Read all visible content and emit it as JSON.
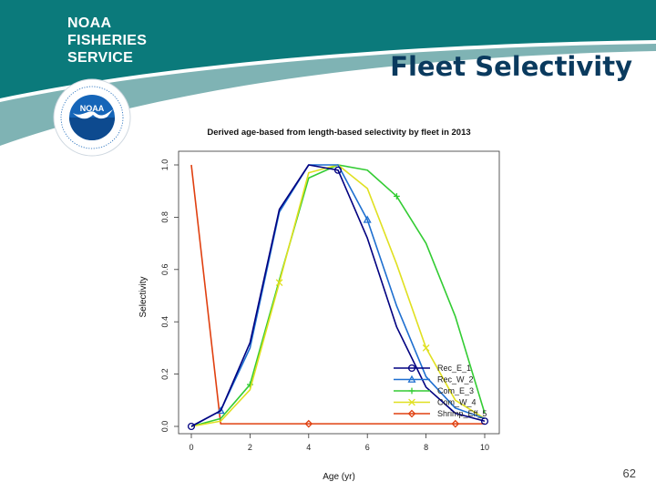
{
  "header": {
    "logo_lines": [
      "NOAA",
      "FISHERIES",
      "SERVICE"
    ],
    "title": "Fleet Selectivity",
    "colors": {
      "band": "#0b7a7b",
      "band_shadow": "#7fb3b4",
      "title": "#0a3a5e",
      "emblem_blue": "#1565b8"
    },
    "emblem_icon": "noaa-bird-emblem-icon"
  },
  "chart_data": {
    "type": "line",
    "title": "Derived age-based from length-based selectivity by fleet in 2013",
    "xlabel": "Age (yr)",
    "ylabel": "Selectivity",
    "xlim": [
      0,
      10
    ],
    "ylim": [
      0,
      1
    ],
    "x_ticks": [
      "0",
      "2",
      "4",
      "6",
      "8",
      "10"
    ],
    "y_ticks": [
      "0.0",
      "0.2",
      "0.4",
      "0.6",
      "0.8",
      "1.0"
    ],
    "grid": false,
    "legend_position": "bottom-right",
    "x": [
      0,
      1,
      2,
      3,
      4,
      5,
      6,
      7,
      8,
      9,
      10
    ],
    "series": [
      {
        "name": "Rec_E_1",
        "color": "#000080",
        "marker": "circle",
        "values": [
          0,
          0.06,
          0.32,
          0.83,
          1.0,
          0.98,
          0.72,
          0.38,
          0.15,
          0.05,
          0.02
        ]
      },
      {
        "name": "Rec_W_2",
        "color": "#1e6fd0",
        "marker": "triangle",
        "values": [
          0,
          0.06,
          0.3,
          0.82,
          1.0,
          1.0,
          0.79,
          0.46,
          0.19,
          0.07,
          0.03
        ]
      },
      {
        "name": "Com_E_3",
        "color": "#33cc33",
        "marker": "plus",
        "values": [
          0,
          0.03,
          0.16,
          0.56,
          0.95,
          1.0,
          0.98,
          0.88,
          0.7,
          0.42,
          0.05
        ]
      },
      {
        "name": "Com_W_4",
        "color": "#e0e020",
        "marker": "cross",
        "values": [
          0,
          0.02,
          0.14,
          0.55,
          0.97,
          1.0,
          0.91,
          0.62,
          0.3,
          0.1,
          0.03
        ]
      },
      {
        "name": "Shrimp_Eff_5",
        "color": "#e04010",
        "marker": "diamond",
        "values": [
          1.0,
          0.01,
          0.01,
          0.01,
          0.01,
          0.01,
          0.01,
          0.01,
          0.01,
          0.01,
          0.01
        ]
      }
    ]
  },
  "footer": {
    "page_number": "62"
  }
}
